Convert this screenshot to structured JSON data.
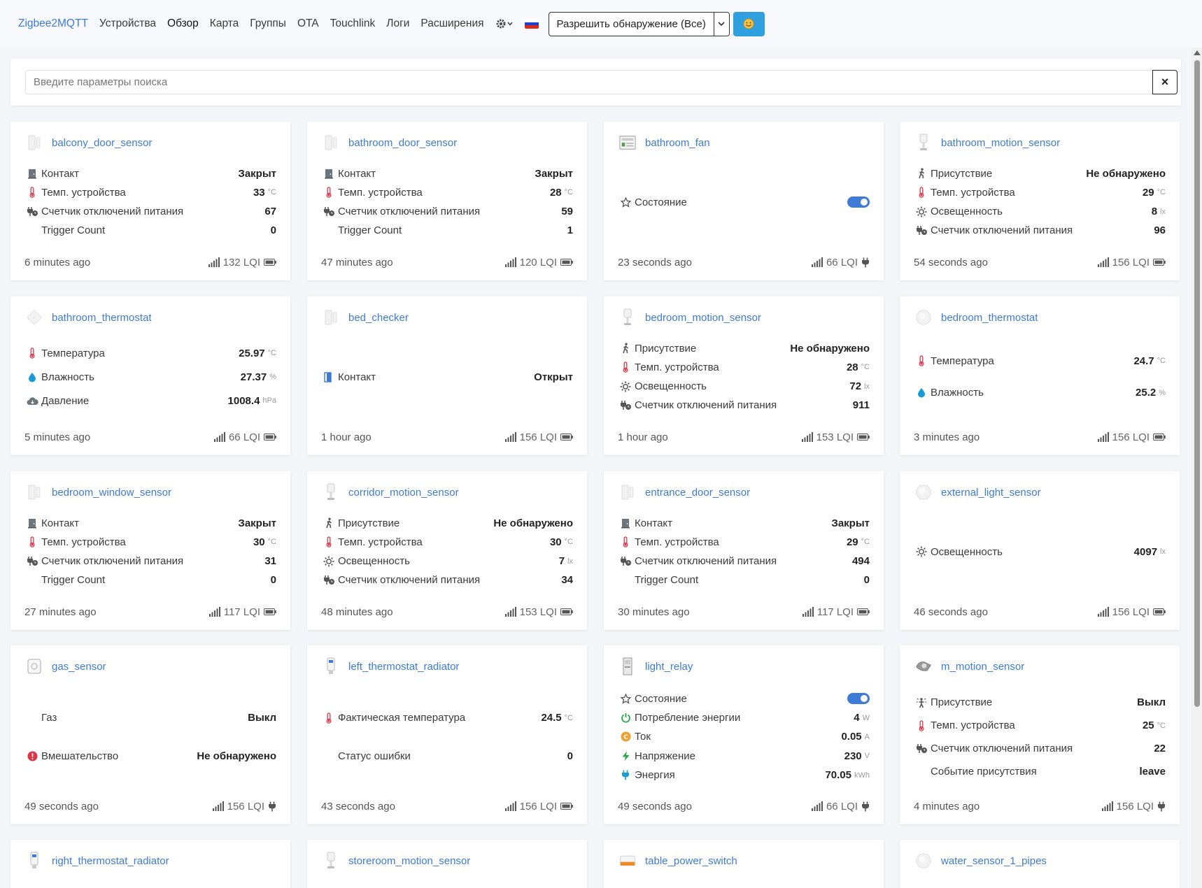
{
  "nav": {
    "brand": "Zigbee2MQTT",
    "links": [
      "Устройства",
      "Обзор",
      "Карта",
      "Группы",
      "OTA",
      "Touchlink",
      "Логи",
      "Расширения"
    ],
    "permit_join": "Разрешить обнаружение (Все)",
    "flag_colors": [
      "#ffffff",
      "#1c3fd1",
      "#d52b1e"
    ]
  },
  "search": {
    "placeholder": "Введите параметры поиска",
    "clear": "×"
  },
  "cards": [
    {
      "name": "balcony_door_sensor",
      "img": "door-sensor",
      "rows": [
        {
          "icon": "door-icon",
          "label": "Контакт",
          "value": "Закрыт",
          "unit": ""
        },
        {
          "icon": "thermometer-icon",
          "label": "Темп. устройства",
          "value": "33",
          "unit": "°C"
        },
        {
          "icon": "plug-counter-icon",
          "label": "Счетчик отключений питания",
          "value": "67",
          "unit": ""
        },
        {
          "icon": "",
          "label": "Trigger Count",
          "value": "0",
          "unit": ""
        }
      ],
      "ago": "6 minutes ago",
      "lqi": "132 LQI",
      "power": "battery"
    },
    {
      "name": "bathroom_door_sensor",
      "img": "door-sensor",
      "rows": [
        {
          "icon": "door-icon",
          "label": "Контакт",
          "value": "Закрыт",
          "unit": ""
        },
        {
          "icon": "thermometer-icon",
          "label": "Темп. устройства",
          "value": "28",
          "unit": "°C"
        },
        {
          "icon": "plug-counter-icon",
          "label": "Счетчик отключений питания",
          "value": "59",
          "unit": ""
        },
        {
          "icon": "",
          "label": "Trigger Count",
          "value": "1",
          "unit": ""
        }
      ],
      "ago": "47 minutes ago",
      "lqi": "120 LQI",
      "power": "battery"
    },
    {
      "name": "bathroom_fan",
      "img": "relay-module",
      "rows": [
        {
          "icon": "star-icon",
          "label": "Состояние",
          "value": "",
          "unit": "",
          "toggle": true
        }
      ],
      "ago": "23 seconds ago",
      "lqi": "66 LQI",
      "power": "plug"
    },
    {
      "name": "bathroom_motion_sensor",
      "img": "motion-sensor",
      "rows": [
        {
          "icon": "walk-icon",
          "label": "Присутствие",
          "value": "Не обнаружено",
          "unit": ""
        },
        {
          "icon": "thermometer-icon",
          "label": "Темп. устройства",
          "value": "29",
          "unit": "°C"
        },
        {
          "icon": "sun-icon",
          "label": "Освещенность",
          "value": "8",
          "unit": "lx"
        },
        {
          "icon": "plug-counter-icon",
          "label": "Счетчик отключений питания",
          "value": "96",
          "unit": ""
        }
      ],
      "ago": "54 seconds ago",
      "lqi": "156 LQI",
      "power": "battery"
    },
    {
      "name": "bathroom_thermostat",
      "img": "temp-sensor",
      "rows": [
        {
          "icon": "thermometer-icon",
          "label": "Температура",
          "value": "25.97",
          "unit": "°C"
        },
        {
          "icon": "drop-icon",
          "label": "Влажность",
          "value": "27.37",
          "unit": "%"
        },
        {
          "icon": "cloud-icon",
          "label": "Давление",
          "value": "1008.4",
          "unit": "hPa"
        }
      ],
      "ago": "5 minutes ago",
      "lqi": "66 LQI",
      "power": "battery"
    },
    {
      "name": "bed_checker",
      "img": "door-sensor",
      "rows": [
        {
          "icon": "door-open-icon",
          "label": "Контакт",
          "value": "Открыт",
          "unit": ""
        }
      ],
      "ago": "1 hour ago",
      "lqi": "156 LQI",
      "power": "battery"
    },
    {
      "name": "bedroom_motion_sensor",
      "img": "motion-sensor",
      "rows": [
        {
          "icon": "walk-icon",
          "label": "Присутствие",
          "value": "Не обнаружено",
          "unit": ""
        },
        {
          "icon": "thermometer-icon",
          "label": "Темп. устройства",
          "value": "28",
          "unit": "°C"
        },
        {
          "icon": "sun-icon",
          "label": "Освещенность",
          "value": "72",
          "unit": "lx"
        },
        {
          "icon": "plug-counter-icon",
          "label": "Счетчик отключений питания",
          "value": "911",
          "unit": ""
        }
      ],
      "ago": "1 hour ago",
      "lqi": "153 LQI",
      "power": "battery"
    },
    {
      "name": "bedroom_thermostat",
      "img": "round-sensor",
      "rows": [
        {
          "icon": "thermometer-icon",
          "label": "Температура",
          "value": "24.7",
          "unit": "°C"
        },
        {
          "icon": "drop-icon",
          "label": "Влажность",
          "value": "25.2",
          "unit": "%"
        }
      ],
      "ago": "3 minutes ago",
      "lqi": "156 LQI",
      "power": "battery"
    },
    {
      "name": "bedroom_window_sensor",
      "img": "door-sensor",
      "rows": [
        {
          "icon": "door-icon",
          "label": "Контакт",
          "value": "Закрыт",
          "unit": ""
        },
        {
          "icon": "thermometer-icon",
          "label": "Темп. устройства",
          "value": "30",
          "unit": "°C"
        },
        {
          "icon": "plug-counter-icon",
          "label": "Счетчик отключений питания",
          "value": "31",
          "unit": ""
        },
        {
          "icon": "",
          "label": "Trigger Count",
          "value": "0",
          "unit": ""
        }
      ],
      "ago": "27 minutes ago",
      "lqi": "117 LQI",
      "power": "battery"
    },
    {
      "name": "corridor_motion_sensor",
      "img": "motion-sensor",
      "rows": [
        {
          "icon": "walk-icon",
          "label": "Присутствие",
          "value": "Не обнаружено",
          "unit": ""
        },
        {
          "icon": "thermometer-icon",
          "label": "Темп. устройства",
          "value": "30",
          "unit": "°C"
        },
        {
          "icon": "sun-icon",
          "label": "Освещенность",
          "value": "7",
          "unit": "lx"
        },
        {
          "icon": "plug-counter-icon",
          "label": "Счетчик отключений питания",
          "value": "34",
          "unit": ""
        }
      ],
      "ago": "48 minutes ago",
      "lqi": "153 LQI",
      "power": "battery"
    },
    {
      "name": "entrance_door_sensor",
      "img": "door-sensor",
      "rows": [
        {
          "icon": "door-icon",
          "label": "Контакт",
          "value": "Закрыт",
          "unit": ""
        },
        {
          "icon": "thermometer-icon",
          "label": "Темп. устройства",
          "value": "29",
          "unit": "°C"
        },
        {
          "icon": "plug-counter-icon",
          "label": "Счетчик отключений питания",
          "value": "494",
          "unit": ""
        },
        {
          "icon": "",
          "label": "Trigger Count",
          "value": "0",
          "unit": ""
        }
      ],
      "ago": "30 minutes ago",
      "lqi": "117 LQI",
      "power": "battery"
    },
    {
      "name": "external_light_sensor",
      "img": "round-sensor",
      "rows": [
        {
          "icon": "sun-icon",
          "label": "Освещенность",
          "value": "4097",
          "unit": "lx"
        }
      ],
      "ago": "46 seconds ago",
      "lqi": "156 LQI",
      "power": "battery"
    },
    {
      "name": "gas_sensor",
      "img": "gas-sensor",
      "rows": [
        {
          "icon": "",
          "label": "Газ",
          "value": "Выкл",
          "unit": ""
        },
        {
          "icon": "alert-icon",
          "label": "Вмешательство",
          "value": "Не обнаружено",
          "unit": ""
        }
      ],
      "ago": "49 seconds ago",
      "lqi": "156 LQI",
      "power": "plug"
    },
    {
      "name": "left_thermostat_radiator",
      "img": "trv",
      "rows": [
        {
          "icon": "thermometer-icon",
          "label": "Фактическая температура",
          "value": "24.5",
          "unit": "°C"
        },
        {
          "icon": "",
          "label": "Статус ошибки",
          "value": "0",
          "unit": ""
        }
      ],
      "ago": "43 seconds ago",
      "lqi": "156 LQI",
      "power": "battery"
    },
    {
      "name": "light_relay",
      "img": "din-relay",
      "rows": [
        {
          "icon": "star-icon",
          "label": "Состояние",
          "value": "",
          "unit": "",
          "toggle": true
        },
        {
          "icon": "power-icon",
          "label": "Потребление энергии",
          "value": "4",
          "unit": "W"
        },
        {
          "icon": "current-icon",
          "label": "Ток",
          "value": "0.05",
          "unit": "A"
        },
        {
          "icon": "bolt-icon",
          "label": "Напряжение",
          "value": "230",
          "unit": "V"
        },
        {
          "icon": "energy-plug-icon",
          "label": "Энергия",
          "value": "70.05",
          "unit": "kWh"
        }
      ],
      "ago": "49 seconds ago",
      "lqi": "66 LQI",
      "power": "plug"
    },
    {
      "name": "m_motion_sensor",
      "img": "pir-sensor",
      "rows": [
        {
          "icon": "presence-icon",
          "label": "Присутствие",
          "value": "Выкл",
          "unit": ""
        },
        {
          "icon": "thermometer-icon",
          "label": "Темп. устройства",
          "value": "25",
          "unit": "°C"
        },
        {
          "icon": "plug-counter-icon",
          "label": "Счетчик отключений питания",
          "value": "22",
          "unit": ""
        },
        {
          "icon": "",
          "label": "Событие присутствия",
          "value": "leave",
          "unit": ""
        }
      ],
      "ago": "4 minutes ago",
      "lqi": "156 LQI",
      "power": "plug"
    },
    {
      "name": "right_thermostat_radiator",
      "img": "trv",
      "rows": [],
      "ago": "",
      "lqi": "",
      "power": ""
    },
    {
      "name": "storeroom_motion_sensor",
      "img": "motion-sensor",
      "rows": [],
      "ago": "",
      "lqi": "",
      "power": ""
    },
    {
      "name": "table_power_switch",
      "img": "plug-switch",
      "rows": [],
      "ago": "",
      "lqi": "",
      "power": ""
    },
    {
      "name": "water_sensor_1_pipes",
      "img": "round-sensor",
      "rows": [],
      "ago": "",
      "lqi": "",
      "power": ""
    }
  ]
}
